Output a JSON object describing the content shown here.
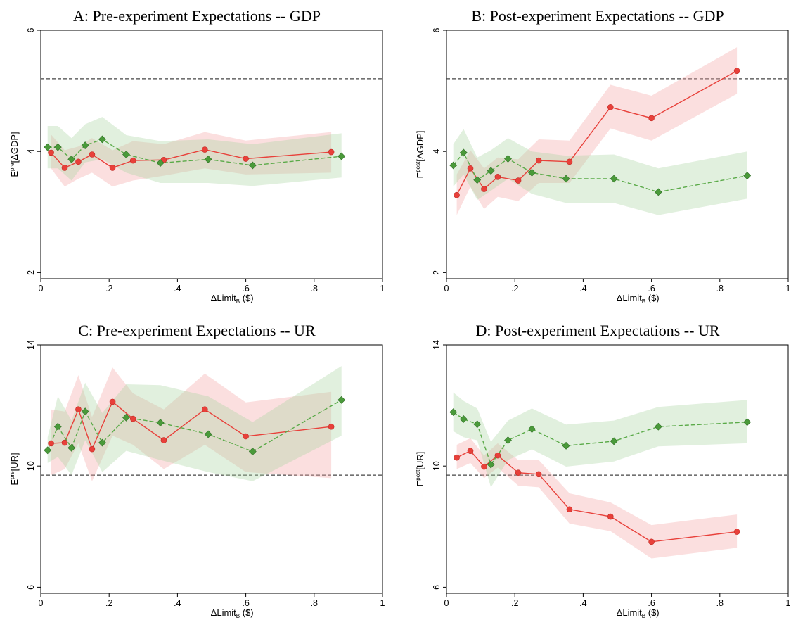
{
  "colors": {
    "treatment": "#e8403a",
    "treatment_fill": "#f4a3a3",
    "control": "#4a9a3a",
    "control_line": "#5aaa48",
    "control_fill": "#a8d4a0",
    "reference_line": "#444444"
  },
  "chart_data": [
    {
      "type": "line",
      "title": "A: Pre-experiment Expectations -- GDP",
      "xlabel": "ΔLimitʙ ($)",
      "xlabel_main": "ΔLimit",
      "xlabel_sub": "B",
      "xlabel_unit": " ($)",
      "ylabel_main": "E",
      "ylabel_sup": "pre",
      "ylabel_rest": "[ΔGDP]",
      "xlim": [
        0,
        1
      ],
      "ylim": [
        1.9,
        6
      ],
      "xticks": [
        "0",
        ".2",
        ".4",
        ".6",
        ".8",
        "1"
      ],
      "yticks": [
        "2",
        "4",
        "6"
      ],
      "reference_y": 5.2,
      "series": [
        {
          "style": "treatment",
          "x": [
            0.03,
            0.07,
            0.11,
            0.15,
            0.21,
            0.27,
            0.36,
            0.48,
            0.6,
            0.85
          ],
          "y": [
            3.98,
            3.73,
            3.83,
            3.95,
            3.73,
            3.85,
            3.86,
            4.03,
            3.88,
            3.99
          ],
          "lo": [
            3.72,
            3.42,
            3.55,
            3.65,
            3.42,
            3.52,
            3.6,
            3.72,
            3.62,
            3.65
          ],
          "hi": [
            4.28,
            4.02,
            4.08,
            4.22,
            4.02,
            4.17,
            4.12,
            4.32,
            4.18,
            4.32
          ]
        },
        {
          "style": "control",
          "x": [
            0.02,
            0.05,
            0.09,
            0.13,
            0.18,
            0.25,
            0.35,
            0.49,
            0.62,
            0.88
          ],
          "y": [
            4.07,
            4.07,
            3.87,
            4.1,
            4.2,
            3.95,
            3.81,
            3.87,
            3.77,
            3.92
          ],
          "lo": [
            3.72,
            3.72,
            3.52,
            3.82,
            3.87,
            3.65,
            3.48,
            3.48,
            3.43,
            3.57
          ],
          "hi": [
            4.42,
            4.42,
            4.22,
            4.45,
            4.57,
            4.27,
            4.17,
            4.2,
            4.12,
            4.3
          ]
        }
      ]
    },
    {
      "type": "line",
      "title": "B: Post-experiment Expectations -- GDP",
      "xlabel": "ΔLimitʙ ($)",
      "xlabel_main": "ΔLimit",
      "xlabel_sub": "B",
      "xlabel_unit": " ($)",
      "ylabel_main": "E",
      "ylabel_sup": "post",
      "ylabel_rest": "[ΔGDP]",
      "xlim": [
        0,
        1
      ],
      "ylim": [
        1.9,
        6
      ],
      "xticks": [
        "0",
        ".2",
        ".4",
        ".6",
        ".8",
        "1"
      ],
      "yticks": [
        "2",
        "4",
        "6"
      ],
      "reference_y": 5.2,
      "series": [
        {
          "style": "treatment",
          "x": [
            0.03,
            0.07,
            0.11,
            0.15,
            0.21,
            0.27,
            0.36,
            0.48,
            0.6,
            0.85
          ],
          "y": [
            3.28,
            3.72,
            3.38,
            3.58,
            3.52,
            3.85,
            3.83,
            4.73,
            4.55,
            5.33
          ],
          "lo": [
            2.95,
            3.42,
            3.05,
            3.25,
            3.18,
            3.48,
            3.48,
            4.38,
            4.18,
            4.95
          ],
          "hi": [
            3.62,
            4.02,
            3.72,
            3.9,
            3.87,
            4.2,
            4.18,
            5.1,
            4.92,
            5.72
          ]
        },
        {
          "style": "control",
          "x": [
            0.02,
            0.05,
            0.09,
            0.13,
            0.18,
            0.25,
            0.35,
            0.49,
            0.62,
            0.88
          ],
          "y": [
            3.77,
            3.98,
            3.53,
            3.68,
            3.88,
            3.65,
            3.55,
            3.55,
            3.33,
            3.6
          ],
          "lo": [
            3.42,
            3.62,
            3.2,
            3.35,
            3.55,
            3.3,
            3.15,
            3.15,
            2.95,
            3.22
          ],
          "hi": [
            4.12,
            4.37,
            3.9,
            4.02,
            4.22,
            4.0,
            3.93,
            3.95,
            3.72,
            4.0
          ]
        }
      ]
    },
    {
      "type": "line",
      "title": "C: Pre-experiment Expectations -- UR",
      "xlabel": "ΔLimitʙ ($)",
      "xlabel_main": "ΔLimit",
      "xlabel_sub": "B",
      "xlabel_unit": " ($)",
      "ylabel_main": "E",
      "ylabel_sup": "pre",
      "ylabel_rest": "[UR]",
      "xlim": [
        0,
        1
      ],
      "ylim": [
        5.8,
        14
      ],
      "xticks": [
        "0",
        ".2",
        ".4",
        ".6",
        ".8",
        "1"
      ],
      "yticks": [
        "6",
        "10",
        "14"
      ],
      "reference_y": 9.7,
      "series": [
        {
          "style": "treatment",
          "x": [
            0.03,
            0.07,
            0.11,
            0.15,
            0.21,
            0.27,
            0.36,
            0.48,
            0.6,
            0.85
          ],
          "y": [
            10.75,
            10.77,
            11.87,
            10.56,
            12.12,
            11.56,
            10.85,
            11.87,
            10.98,
            11.3
          ],
          "lo": [
            9.7,
            9.9,
            10.75,
            9.5,
            11.0,
            10.7,
            9.9,
            10.7,
            9.8,
            9.6
          ],
          "hi": [
            11.87,
            11.8,
            13.0,
            11.62,
            13.25,
            12.4,
            11.87,
            13.05,
            12.1,
            12.45
          ]
        },
        {
          "style": "control",
          "x": [
            0.02,
            0.05,
            0.09,
            0.13,
            0.18,
            0.25,
            0.35,
            0.49,
            0.62,
            0.88
          ],
          "y": [
            10.52,
            11.3,
            10.6,
            11.8,
            10.77,
            11.6,
            11.43,
            11.05,
            10.48,
            12.18
          ],
          "lo": [
            10.1,
            10.3,
            9.7,
            10.85,
            9.8,
            10.5,
            10.2,
            9.8,
            9.5,
            11.0
          ],
          "hi": [
            10.95,
            12.3,
            11.5,
            12.75,
            11.75,
            12.7,
            12.67,
            12.3,
            11.45,
            13.3
          ]
        }
      ]
    },
    {
      "type": "line",
      "title": "D: Post-experiment Expectations -- UR",
      "xlabel": "ΔLimitʙ ($)",
      "xlabel_main": "ΔLimit",
      "xlabel_sub": "B",
      "xlabel_unit": " ($)",
      "ylabel_main": "E",
      "ylabel_sup": "post",
      "ylabel_rest": "[UR]",
      "xlim": [
        0,
        1
      ],
      "ylim": [
        5.8,
        14
      ],
      "xticks": [
        "0",
        ".2",
        ".4",
        ".6",
        ".8",
        "1"
      ],
      "yticks": [
        "6",
        "10",
        "14"
      ],
      "reference_y": 9.7,
      "series": [
        {
          "style": "treatment",
          "x": [
            0.03,
            0.07,
            0.11,
            0.15,
            0.21,
            0.27,
            0.36,
            0.48,
            0.6,
            0.85
          ],
          "y": [
            10.28,
            10.5,
            9.98,
            10.35,
            9.78,
            9.73,
            8.57,
            8.33,
            7.5,
            7.83
          ],
          "lo": [
            9.9,
            10.1,
            9.6,
            9.95,
            9.35,
            9.3,
            8.1,
            7.85,
            6.95,
            7.3
          ],
          "hi": [
            10.7,
            10.92,
            10.35,
            10.75,
            10.2,
            10.2,
            9.1,
            8.8,
            8.05,
            8.4
          ]
        },
        {
          "style": "control",
          "x": [
            0.02,
            0.05,
            0.09,
            0.13,
            0.18,
            0.25,
            0.35,
            0.49,
            0.62,
            0.88
          ],
          "y": [
            11.78,
            11.55,
            11.38,
            10.05,
            10.85,
            11.22,
            10.67,
            10.82,
            11.3,
            11.45
          ],
          "lo": [
            11.15,
            10.95,
            10.85,
            9.3,
            10.2,
            10.55,
            9.98,
            10.15,
            10.65,
            10.75
          ],
          "hi": [
            12.43,
            12.15,
            11.9,
            10.8,
            11.5,
            11.9,
            11.37,
            11.5,
            11.95,
            12.18
          ]
        }
      ]
    }
  ]
}
